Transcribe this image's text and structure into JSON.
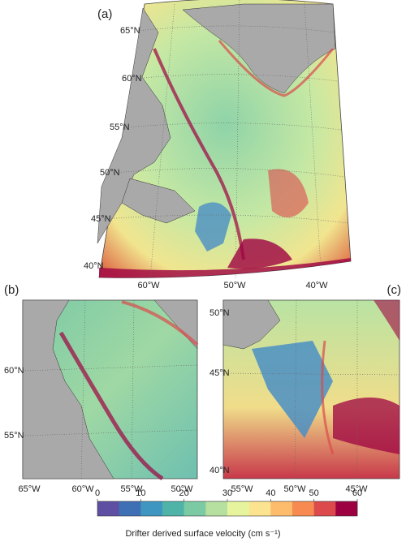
{
  "panels": [
    {
      "label": "(a)",
      "lat_labels": [
        "65°N",
        "60°N",
        "55°N",
        "50°N",
        "45°N",
        "40°N"
      ],
      "lon_labels": [
        "60°W",
        "50°W",
        "40°W"
      ]
    },
    {
      "label": "(b)",
      "lat_labels": [
        "60°N",
        "55°N"
      ],
      "lon_labels": [
        "65°W",
        "60°W",
        "55°W",
        "50°W"
      ]
    },
    {
      "label": "(c)",
      "lat_labels": [
        "50°N",
        "45°N",
        "40°N"
      ],
      "lon_labels": [
        "55°W",
        "50°W",
        "45°W"
      ]
    }
  ],
  "colorbar": {
    "lim": [
      0,
      60
    ],
    "ticks": [
      0,
      10,
      20,
      30,
      40,
      50,
      60
    ],
    "colors": [
      "#5e4fa2",
      "#3f6fb5",
      "#3f96c0",
      "#4fb3a8",
      "#7ccaa4",
      "#b5e0a0",
      "#e6f59d",
      "#fbe38f",
      "#fdbb6c",
      "#f68a50",
      "#dc4a4c",
      "#9e0142"
    ],
    "label": "Drifter derived surface velocity (cm s⁻¹)"
  }
}
